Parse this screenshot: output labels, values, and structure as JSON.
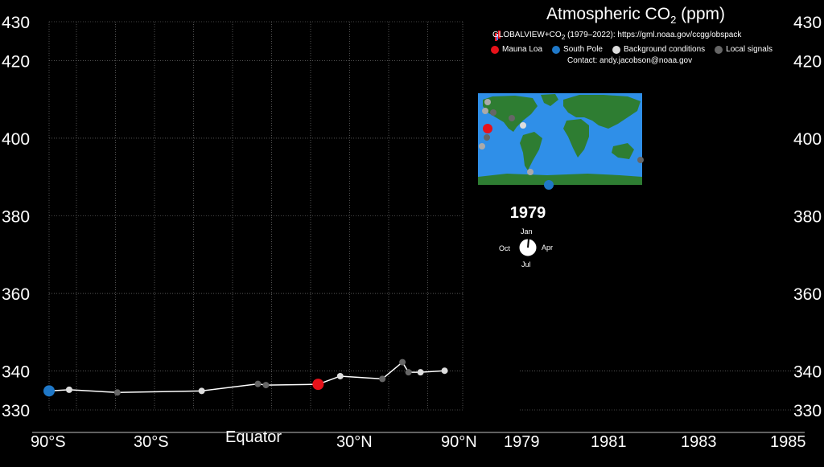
{
  "title_main": "Atmospheric CO",
  "title_sub": "2",
  "title_unit": "(ppm)",
  "source_prefix": "GLOBALVIEW+CO",
  "source_sub": "2",
  "source_suffix": " (1979–2022): https://gml.noaa.gov/ccgg/obspack",
  "contact": "Contact: andy.jacobson@noaa.gov",
  "legend": [
    {
      "label": "Mauna Loa",
      "color": "#e8121a"
    },
    {
      "label": "South Pole",
      "color": "#1f78c8"
    },
    {
      "label": "Background conditions",
      "color": "#dddddd"
    },
    {
      "label": "Local signals",
      "color": "#666666"
    }
  ],
  "year": "1979",
  "clock": {
    "top": "Jan",
    "right": "Apr",
    "bottom": "Jul",
    "left": "Oct"
  },
  "colors": {
    "ocean": "#2f8fe8",
    "land": "#2e7d32",
    "grid": "#888888"
  },
  "chart_data": [
    {
      "type": "scatter",
      "title": "Atmospheric CO2 (ppm)",
      "xlabel": "",
      "ylabel": "",
      "x_ticks": [
        "90°S",
        "30°S",
        "Equator",
        "30°N",
        "90°N"
      ],
      "xlim": [
        -1,
        1
      ],
      "y_ticks": [
        330,
        340,
        360,
        380,
        400,
        420,
        430
      ],
      "ylim": [
        330,
        430
      ],
      "grid": true,
      "points": [
        {
          "x": -1.0,
          "y": 334.9,
          "kind": "South Pole"
        },
        {
          "x": -0.9,
          "y": 335.2,
          "kind": "Background conditions"
        },
        {
          "x": -0.66,
          "y": 334.5,
          "kind": "Local signals"
        },
        {
          "x": -0.24,
          "y": 334.9,
          "kind": "Background conditions"
        },
        {
          "x": 0.04,
          "y": 336.7,
          "kind": "Local signals"
        },
        {
          "x": 0.08,
          "y": 336.4,
          "kind": "Local signals"
        },
        {
          "x": 0.34,
          "y": 336.6,
          "kind": "Mauna Loa"
        },
        {
          "x": 0.45,
          "y": 338.7,
          "kind": "Background conditions"
        },
        {
          "x": 0.66,
          "y": 338.0,
          "kind": "Local signals"
        },
        {
          "x": 0.76,
          "y": 342.3,
          "kind": "Local signals"
        },
        {
          "x": 0.79,
          "y": 339.7,
          "kind": "Local signals"
        },
        {
          "x": 0.85,
          "y": 339.7,
          "kind": "Background conditions"
        },
        {
          "x": 0.97,
          "y": 340.1,
          "kind": "Background conditions"
        }
      ]
    },
    {
      "type": "line",
      "x_ticks": [
        "1979",
        "1981",
        "1983",
        "1985"
      ],
      "xlim": [
        1979,
        1985
      ],
      "y_ticks": [
        330,
        340,
        360,
        380,
        400,
        420,
        430
      ],
      "ylim": [
        330,
        430
      ],
      "series": []
    }
  ]
}
